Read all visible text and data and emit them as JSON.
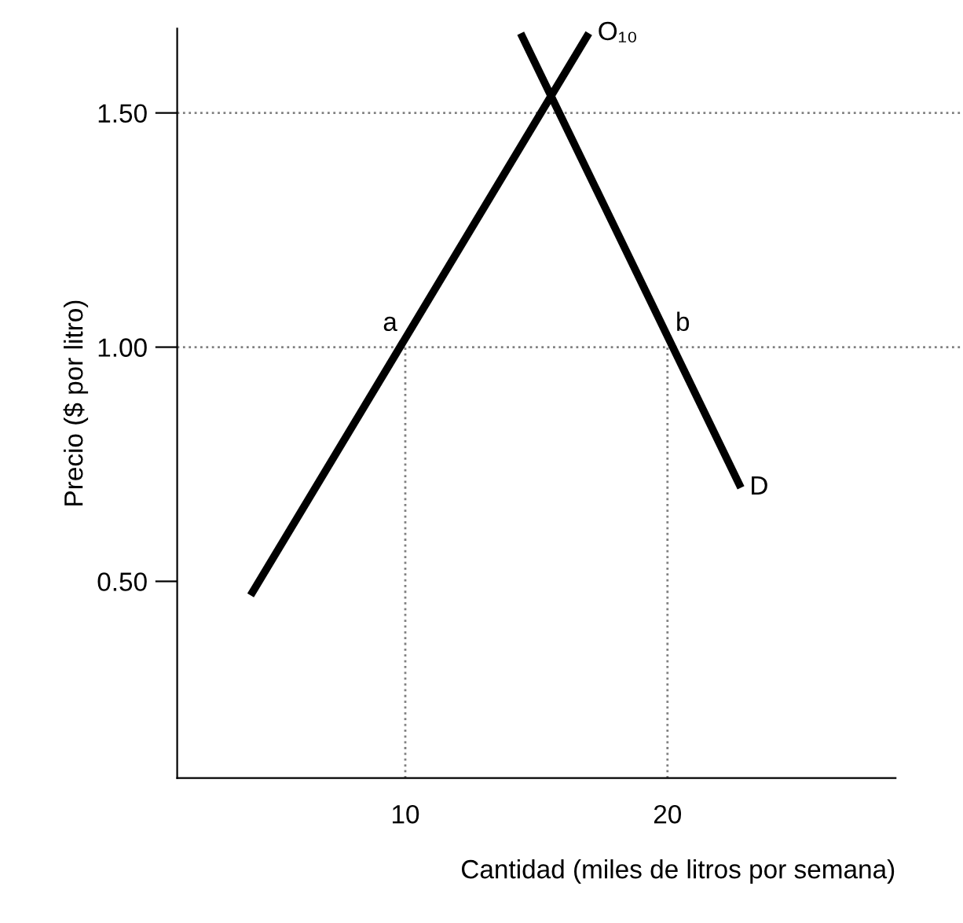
{
  "chart_data": {
    "type": "line",
    "xlabel": "Cantidad (miles de litros por semana)",
    "ylabel": "Precio ($ por litro)",
    "series": [
      {
        "name": "O₁₀",
        "color": "#000000",
        "x": [
          4.1,
          17.0
        ],
        "values": [
          0.47,
          1.67
        ]
      },
      {
        "name": "D",
        "color": "#000000",
        "x": [
          14.4,
          22.8
        ],
        "values": [
          1.67,
          0.7
        ]
      }
    ],
    "xlim": [
      1.3,
      28.7
    ],
    "ylim": [
      0.08,
      1.68
    ],
    "xticks": [
      10,
      20
    ],
    "yticks": [
      {
        "value": 0.5,
        "label": "0.50"
      },
      {
        "value": 1.0,
        "label": "1.00"
      },
      {
        "value": 1.5,
        "label": "1.50"
      }
    ],
    "ref_lines": [
      {
        "axis": "y",
        "value": 1.5,
        "color": "#808080",
        "line_style": "dotted"
      },
      {
        "axis": "y",
        "value": 1.0,
        "color": "#808080",
        "line_style": "dotted"
      },
      {
        "axis": "x",
        "value": 10,
        "color": "#808080",
        "line_style": "dotted"
      },
      {
        "axis": "x",
        "value": 20,
        "color": "#808080",
        "line_style": "dotted"
      }
    ],
    "annotations": [
      {
        "text": "a",
        "x": 10,
        "y": 1.0
      },
      {
        "text": "b",
        "x": 20,
        "y": 1.0
      }
    ],
    "grid": false,
    "legend": false,
    "marker": "none",
    "line_style": "solid"
  }
}
